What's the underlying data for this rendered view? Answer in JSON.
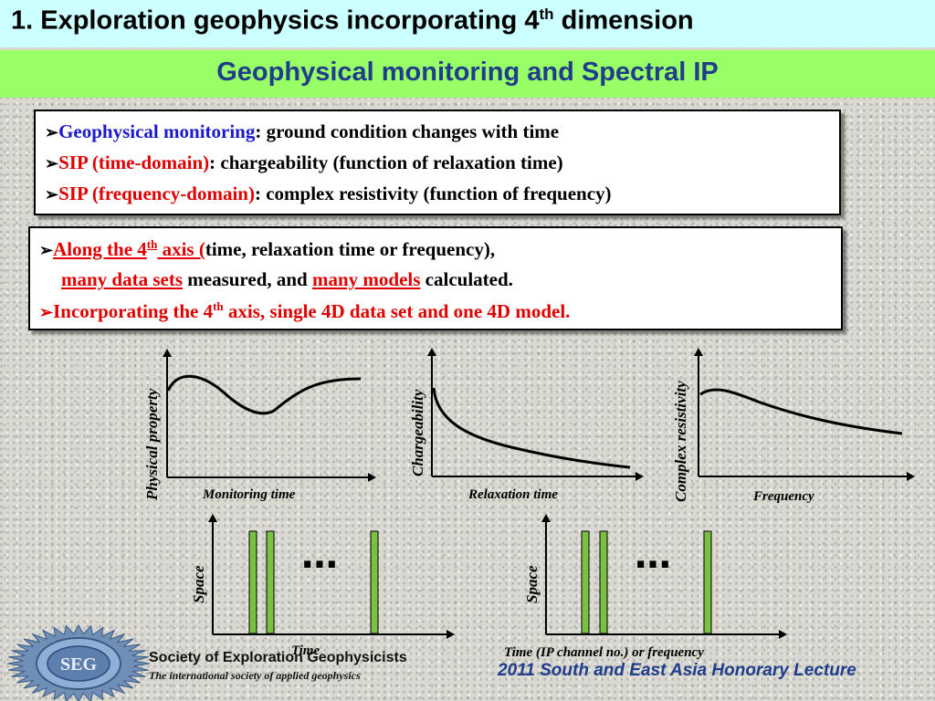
{
  "header": {
    "title_main": "1. Exploration geophysics incorporating 4",
    "title_sup": "th",
    "title_tail": " dimension",
    "subtitle": "Geophysical monitoring and Spectral IP"
  },
  "box1": {
    "bullet": "➢",
    "line1_term": "Geophysical monitoring",
    "line1_desc": ": ground condition changes with time",
    "line2_term": "SIP (time-domain)",
    "line2_desc": ": chargeability (function of relaxation time)",
    "line3_term": "SIP (frequency-domain)",
    "line3_desc": ": complex resistivity (function of frequency)"
  },
  "box2": {
    "bullet": "➢",
    "l1_a": "Along the 4",
    "l1_sup": "th",
    "l1_b": " axis (",
    "l1_c": "time, relaxation time or frequency),",
    "l2_a": "many data sets",
    "l2_b": " measured, and ",
    "l2_c": "many models",
    "l2_d": " calculated.",
    "l3_a": "Incorporating the 4",
    "l3_sup": "th",
    "l3_b": " axis, single 4D data set and one 4D model."
  },
  "diagrams": {
    "plot1_ylabel": "Physical property",
    "plot1_xlabel": "Monitoring time",
    "plot2_ylabel": "Chargeability",
    "plot2_xlabel": "Relaxation time",
    "plot3_ylabel": "Complex resistivity",
    "plot3_xlabel": "Frequency",
    "section1_ylabel": "Space",
    "section1_xlabel": "Time",
    "section1_dots": "…",
    "section2_ylabel": "Space",
    "section2_xlabel": "Time (IP channel no.) or frequency",
    "section2_dots": "…",
    "bar_color": "#7ac143"
  },
  "footer": {
    "logo_text": "SEG",
    "society": "Society of Exploration Geophysicists",
    "tagline": "The international society of applied geophysics",
    "lecture": "2011 South and East Asia Honorary Lecture"
  }
}
